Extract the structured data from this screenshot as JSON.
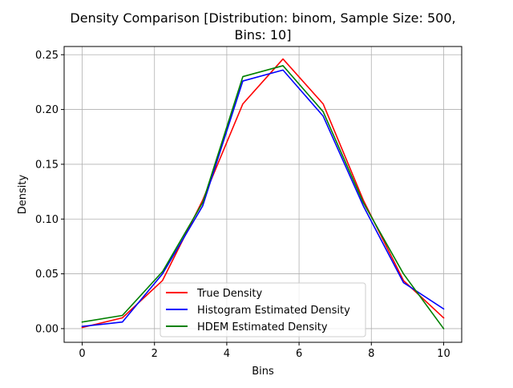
{
  "chart_data": {
    "type": "line",
    "title_lines": [
      "Density Comparison [Distribution: binom, Sample Size: 500,",
      "Bins: 10]"
    ],
    "xlabel": "Bins",
    "ylabel": "Density",
    "xlim": [
      -0.5,
      10.5
    ],
    "ylim": [
      -0.0125,
      0.2575
    ],
    "xticks": [
      0,
      2,
      4,
      6,
      8,
      10
    ],
    "xtick_labels": [
      "0",
      "2",
      "4",
      "6",
      "8",
      "10"
    ],
    "yticks": [
      0.0,
      0.05,
      0.1,
      0.15,
      0.2,
      0.25
    ],
    "ytick_labels": [
      "0.00",
      "0.05",
      "0.10",
      "0.15",
      "0.20",
      "0.25"
    ],
    "grid": true,
    "legend_position": "lower-center",
    "x": [
      0,
      1.1111,
      2.2222,
      3.3333,
      4.4444,
      5.5556,
      6.6667,
      7.7778,
      8.8889,
      10.0
    ],
    "series": [
      {
        "name": "True Density",
        "color": "#ff0000",
        "values": [
          0.001,
          0.0098,
          0.0439,
          0.1172,
          0.2051,
          0.2461,
          0.2051,
          0.1172,
          0.0439,
          0.0098
        ]
      },
      {
        "name": "Histogram Estimated Density",
        "color": "#0000ff",
        "values": [
          0.002,
          0.006,
          0.05,
          0.112,
          0.226,
          0.236,
          0.194,
          0.112,
          0.042,
          0.018
        ]
      },
      {
        "name": "HDEM Estimated Density",
        "color": "#008000",
        "values": [
          0.006,
          0.012,
          0.052,
          0.115,
          0.23,
          0.24,
          0.198,
          0.115,
          0.05,
          0.0
        ]
      }
    ]
  }
}
